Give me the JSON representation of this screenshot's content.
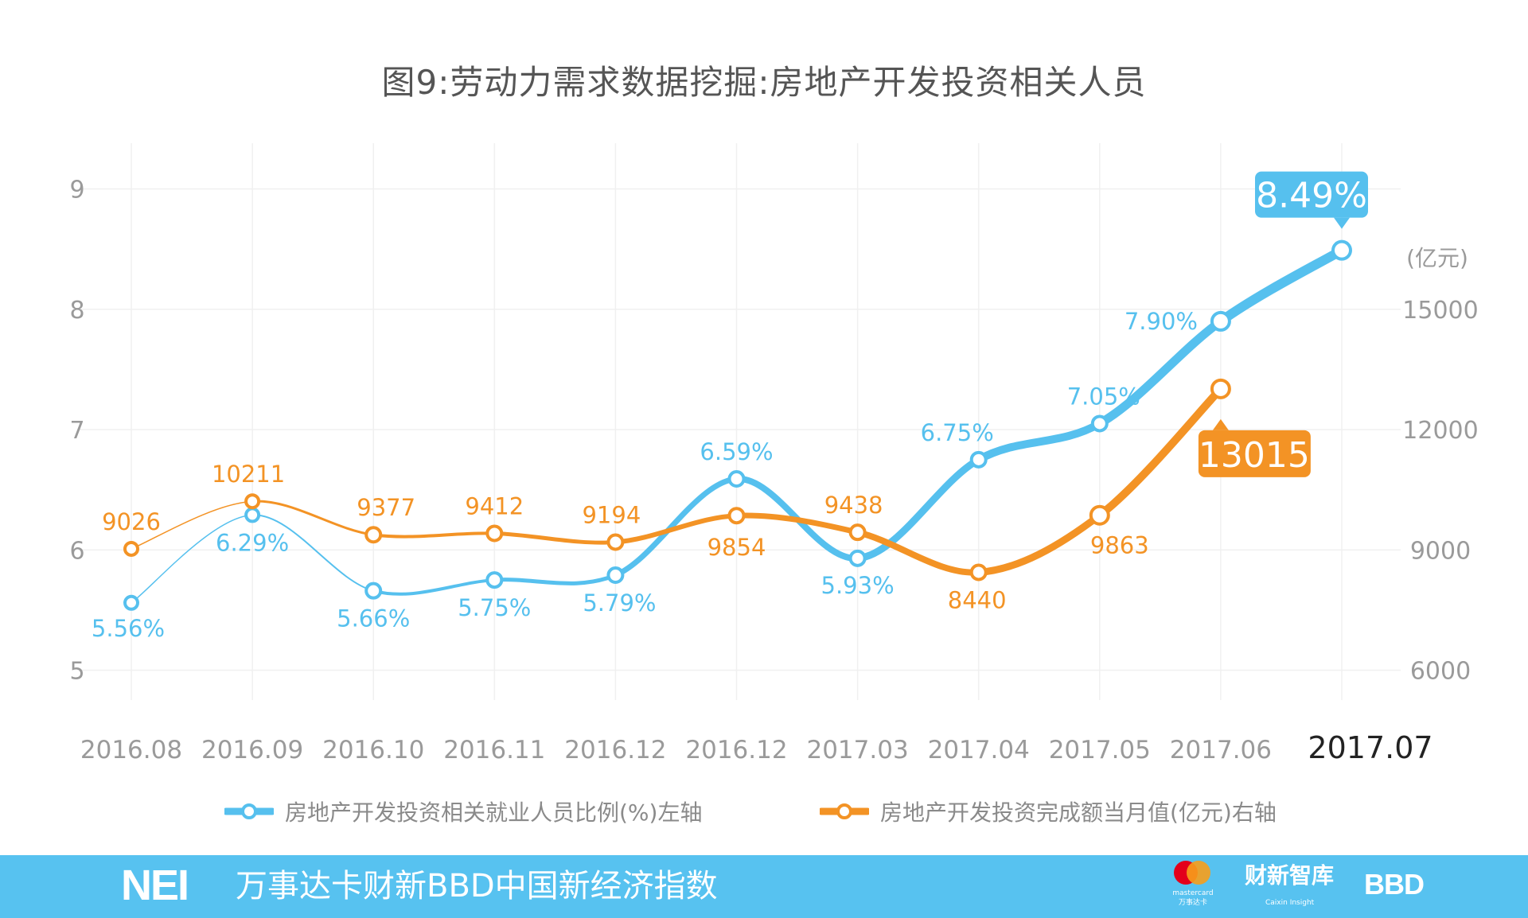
{
  "chart_data": {
    "type": "line",
    "title": "图9:劳动力需求数据挖掘:房地产开发投资相关人员",
    "categories": [
      "2016.08",
      "2016.09",
      "2016.10",
      "2016.11",
      "2016.12",
      "2016.12",
      "2017.03",
      "2017.04",
      "2017.05",
      "2017.06",
      "2017.07"
    ],
    "y_left": {
      "ticks": [
        5,
        6,
        7,
        8,
        9
      ],
      "range": [
        5,
        9
      ]
    },
    "y_right": {
      "unit_label": "(亿元)",
      "ticks": [
        6000,
        9000,
        12000,
        15000
      ],
      "range": [
        6000,
        18000
      ]
    },
    "grid": true,
    "legend_position": "bottom",
    "series": [
      {
        "name": "房地产开发投资相关就业人员比例(%)左轴",
        "axis": "left",
        "color": "#56c0ee",
        "values": [
          5.56,
          6.29,
          5.66,
          5.75,
          5.79,
          6.59,
          5.93,
          6.75,
          7.05,
          7.9,
          8.49
        ],
        "labels": [
          "5.56%",
          "6.29%",
          "5.66%",
          "5.75%",
          "5.79%",
          "6.59%",
          "5.93%",
          "6.75%",
          "7.05%",
          "7.90%",
          "8.49%"
        ]
      },
      {
        "name": "房地产开发投资完成额当月值(亿元)右轴",
        "axis": "right",
        "color": "#f39325",
        "values": [
          9026,
          10211,
          9377,
          9412,
          9194,
          9854,
          9438,
          8440,
          9863,
          13015,
          null
        ],
        "labels": [
          "9026",
          "10211",
          "9377",
          "9412",
          "9194",
          "9854",
          "9438",
          "8440",
          "9863",
          "13015",
          ""
        ]
      }
    ],
    "highlight_x_label": "2017.07"
  },
  "footer": {
    "logo": "NEI",
    "text": "万事达卡财新BBD中国新经济指数",
    "mastercard": "mastercard",
    "mastercard_cn": "万事达卡",
    "caixin": "财新智库",
    "caixin_sub": "Caixin Insight",
    "bbd": "BBD"
  }
}
